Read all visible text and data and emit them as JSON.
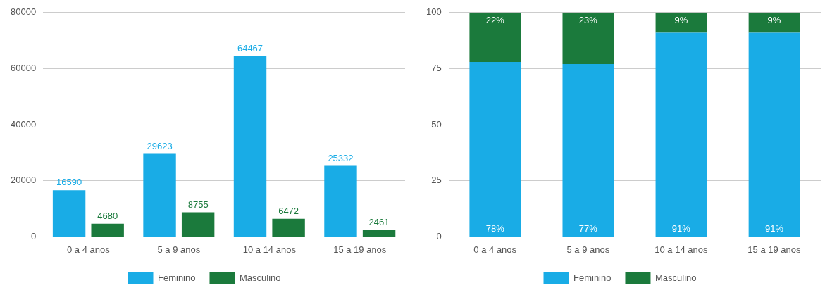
{
  "chart_data": [
    {
      "type": "bar",
      "categories": [
        "0 a 4 anos",
        "5 a 9 anos",
        "10 a 14 anos",
        "15 a 19 anos"
      ],
      "series": [
        {
          "name": "Feminino",
          "color": "#19ace6",
          "values": [
            16590,
            29623,
            64467,
            25332
          ]
        },
        {
          "name": "Masculino",
          "color": "#1b7a3c",
          "values": [
            4680,
            8755,
            6472,
            2461
          ]
        }
      ],
      "ylim": [
        0,
        80000
      ],
      "yticks": [
        0,
        20000,
        40000,
        60000,
        80000
      ],
      "grid": "y",
      "legend": "bottom",
      "data_labels": true
    },
    {
      "type": "bar",
      "stacked": true,
      "categories": [
        "0 a 4 anos",
        "5 a 9 anos",
        "10 a 14 anos",
        "15 a 19 anos"
      ],
      "series": [
        {
          "name": "Feminino",
          "color": "#19ace6",
          "values": [
            78,
            77,
            91,
            91
          ],
          "value_labels": [
            "78%",
            "77%",
            "91%",
            "91%"
          ]
        },
        {
          "name": "Masculino",
          "color": "#1b7a3c",
          "values": [
            22,
            23,
            9,
            9
          ],
          "value_labels": [
            "22%",
            "23%",
            "9%",
            "9%"
          ]
        }
      ],
      "ylim": [
        0,
        100
      ],
      "yticks": [
        0,
        25,
        50,
        75,
        100
      ],
      "grid": "y",
      "legend": "bottom"
    }
  ]
}
